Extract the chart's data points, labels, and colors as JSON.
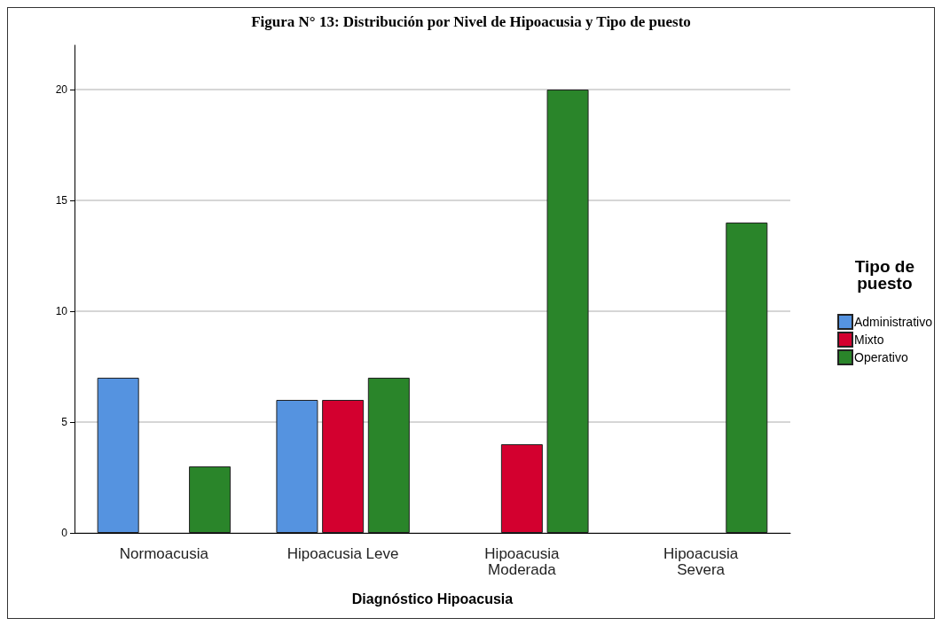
{
  "chart_data": {
    "type": "bar",
    "title": "Figura N° 13: Distribución por Nivel de Hipoacusia y Tipo de puesto",
    "xlabel": "Diagnóstico Hipoacusia",
    "legend_title": "Tipo de\npuesto",
    "categories": [
      "Normoacusia",
      "Hipoacusia Leve",
      "Hipoacusia\nModerada",
      "Hipoacusia\nSevera"
    ],
    "series": [
      {
        "name": "Administrativo",
        "color": "#5593e0",
        "values": [
          7,
          6,
          null,
          null
        ]
      },
      {
        "name": "Mixto",
        "color": "#d3002f",
        "values": [
          null,
          6,
          4,
          null
        ]
      },
      {
        "name": "Operativo",
        "color": "#2a852a",
        "values": [
          3,
          7,
          20,
          14
        ]
      }
    ],
    "ylim": [
      0,
      22
    ],
    "yticks": [
      0,
      5,
      10,
      15,
      20
    ],
    "grid": "y",
    "legend": "right"
  }
}
